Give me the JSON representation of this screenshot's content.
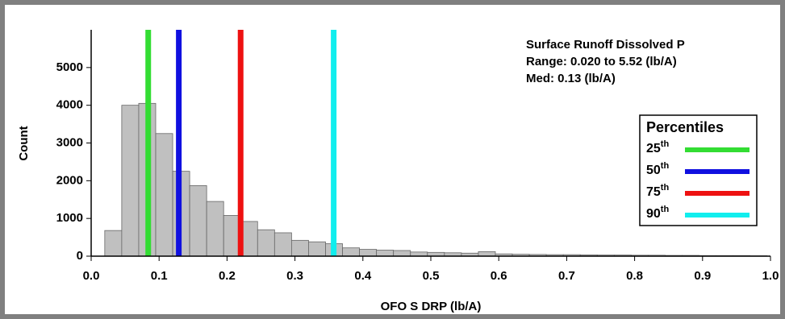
{
  "chart_data": {
    "type": "histogram",
    "x_label": "OFO S DRP (lb/A)",
    "y_label": "Count",
    "annotations": [
      "Surface Runoff Dissolved P",
      "Range: 0.020 to 5.52 (lb/A)",
      "Med: 0.13 (lb/A)"
    ],
    "color": "#c0c0c0",
    "bins": [
      0.02,
      0.045,
      0.07,
      0.095,
      0.12,
      0.145,
      0.17,
      0.195,
      0.22,
      0.245,
      0.27,
      0.295,
      0.32,
      0.345,
      0.37,
      0.395,
      0.42,
      0.445,
      0.47,
      0.495,
      0.52,
      0.545,
      0.57,
      0.595,
      0.62,
      0.645,
      0.67,
      0.695,
      0.72,
      0.745,
      0.77,
      0.795,
      0.82,
      0.845,
      0.87,
      0.895,
      0.92,
      0.945,
      0.97,
      0.995
    ],
    "values": [
      680,
      4000,
      4050,
      3250,
      2250,
      1870,
      1450,
      1080,
      920,
      700,
      620,
      420,
      380,
      330,
      220,
      180,
      160,
      150,
      110,
      100,
      90,
      80,
      120,
      60,
      50,
      45,
      40,
      40,
      35,
      30,
      30,
      25,
      25,
      20,
      20,
      15,
      15,
      15,
      10
    ],
    "legend_title": "Percentiles",
    "series": [
      {
        "name": "25",
        "sup": "th",
        "color": "#33dd33",
        "x": 0.084
      },
      {
        "name": "50",
        "sup": "th",
        "color": "#1010e0",
        "x": 0.129
      },
      {
        "name": "75",
        "sup": "th",
        "color": "#ee1111",
        "x": 0.22
      },
      {
        "name": "90",
        "sup": "th",
        "color": "#11eeee",
        "x": 0.357
      }
    ],
    "xlim": [
      0,
      1
    ],
    "xticks": [
      {
        "value": 0,
        "label": "0.0"
      },
      0.1,
      0.2,
      0.3,
      0.4,
      0.5,
      0.6,
      0.7,
      0.8,
      0.9,
      {
        "value": 1,
        "label": "1.0"
      }
    ],
    "ylim": [
      0,
      6000
    ],
    "yticks": [
      0,
      1000,
      2000,
      3000,
      4000,
      5000
    ],
    "legend": "right"
  }
}
